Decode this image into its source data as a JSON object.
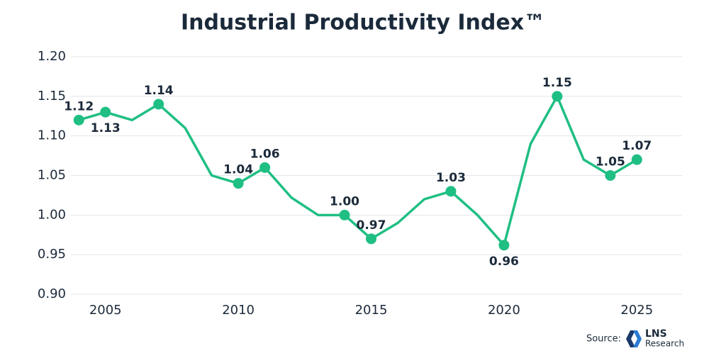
{
  "chart_data": {
    "type": "line",
    "title": "Industrial Productivity Index™",
    "x": [
      2004,
      2005,
      2006,
      2007,
      2008,
      2009,
      2010,
      2011,
      2012,
      2013,
      2014,
      2015,
      2016,
      2017,
      2018,
      2019,
      2020,
      2021,
      2022,
      2023,
      2024,
      2025
    ],
    "series": [
      {
        "color": "#1fbf83",
        "values": [
          1.12,
          1.13,
          1.12,
          1.14,
          1.11,
          1.05,
          1.04,
          1.06,
          1.022,
          1.0,
          1.0,
          0.97,
          0.99,
          1.02,
          1.03,
          1.0,
          0.962,
          1.09,
          1.15,
          1.07,
          1.05,
          1.07
        ],
        "value_labels": [
          "1.12",
          "1.13",
          null,
          "1.14",
          null,
          null,
          "1.04",
          "1.06",
          null,
          null,
          "1.00",
          "0.97",
          null,
          null,
          "1.03",
          null,
          "0.96",
          null,
          "1.15",
          null,
          "1.05",
          "1.07"
        ]
      }
    ],
    "xlim": [
      2003.7,
      2026.7
    ],
    "xticks": [
      2005,
      2010,
      2015,
      2020,
      2025
    ],
    "ylim": [
      0.9,
      1.2
    ],
    "yticks": [
      {
        "value": 0.9,
        "label": "0.90"
      },
      0.95,
      {
        "value": 1.0,
        "label": "1.00"
      },
      1.05,
      {
        "value": 1.1,
        "label": "1.10"
      },
      1.15,
      {
        "value": 1.2,
        "label": "1.20"
      }
    ],
    "grid": true
  },
  "source": {
    "label": "Source:",
    "logo_name": "LNS",
    "logo_sub": "Research"
  }
}
